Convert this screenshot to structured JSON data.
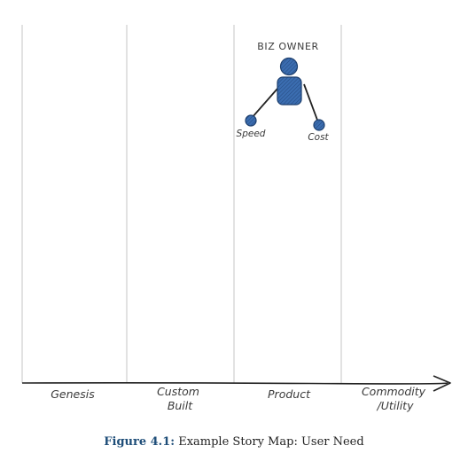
{
  "diagram": {
    "stages": [
      {
        "id": "genesis",
        "lines": [
          "Genesis"
        ]
      },
      {
        "id": "custom-built",
        "lines": [
          "Custom",
          "Built"
        ]
      },
      {
        "id": "product",
        "lines": [
          "Product"
        ]
      },
      {
        "id": "commodity",
        "lines": [
          "Commodity",
          "/Utility"
        ]
      }
    ],
    "actor": {
      "label": "BIZ OWNER",
      "color": "#2f5f9e"
    },
    "needs": [
      {
        "id": "speed",
        "label": "Speed"
      },
      {
        "id": "cost",
        "label": "Cost"
      }
    ],
    "colors": {
      "axis": "#222222",
      "divider": "#cfcfcf",
      "node": "#2f5f9e",
      "node_dark": "#1d3f6e"
    }
  },
  "caption": {
    "figure_number": "Figure 4.1:",
    "text": "Example Story Map: User Need"
  }
}
